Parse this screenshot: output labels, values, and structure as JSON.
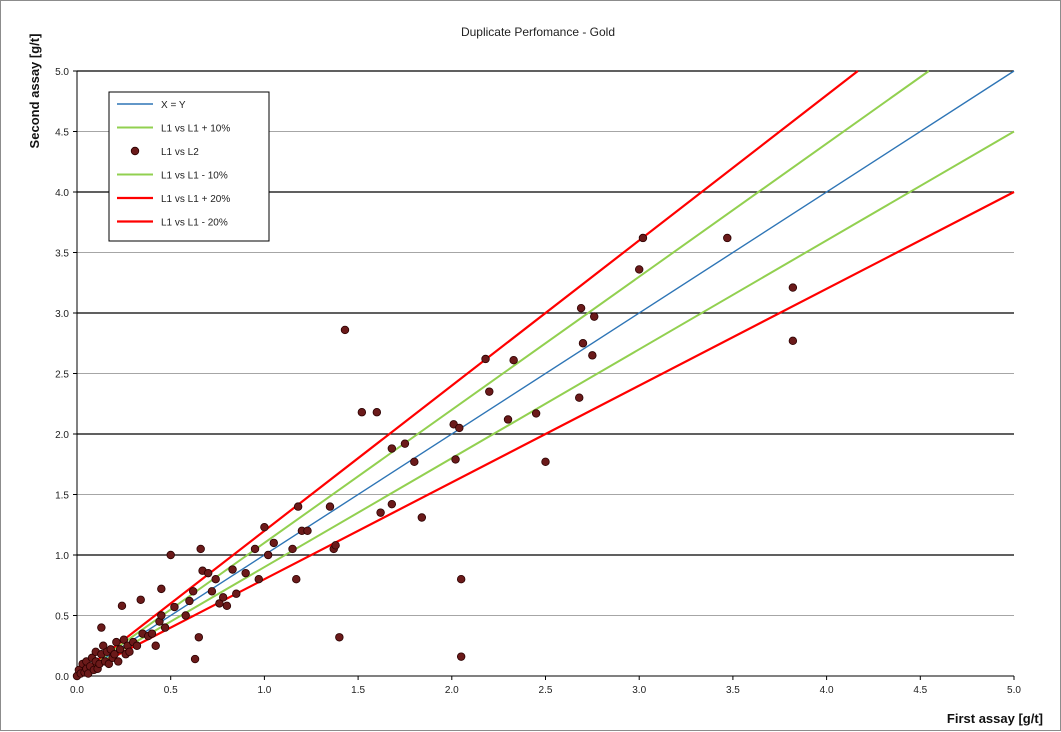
{
  "chart_data": {
    "type": "scatter",
    "title": "Duplicate Perfomance - Gold",
    "xlabel": "First assay [g/t]",
    "ylabel": "Second assay [g/t]",
    "xlim": [
      0,
      5
    ],
    "ylim": [
      0,
      5
    ],
    "x_ticks": [
      "0.0",
      "0.5",
      "1.0",
      "1.5",
      "2.0",
      "2.5",
      "3.0",
      "3.5",
      "4.0",
      "4.5",
      "5.0"
    ],
    "y_ticks": [
      "0.0",
      "0.5",
      "1.0",
      "1.5",
      "2.0",
      "2.5",
      "3.0",
      "3.5",
      "4.0",
      "4.5",
      "5.0"
    ],
    "major_gridlines": [
      1.0,
      2.0,
      3.0,
      4.0,
      5.0
    ],
    "minor_gridlines": [
      0.5,
      1.5,
      2.5,
      3.5,
      4.5
    ],
    "legend_position": "top-left",
    "series": [
      {
        "name": "X = Y",
        "kind": "line",
        "slope": 1.0,
        "color": "#2e75b6"
      },
      {
        "name": "L1 vs L1 + 10%",
        "kind": "line",
        "slope": 1.1,
        "color": "#92d050"
      },
      {
        "name": "L1 vs L2",
        "kind": "scatter",
        "color": "#6b1a1a",
        "points": [
          [
            0.0,
            0.0
          ],
          [
            0.01,
            0.05
          ],
          [
            0.02,
            0.02
          ],
          [
            0.03,
            0.1
          ],
          [
            0.04,
            0.03
          ],
          [
            0.05,
            0.06
          ],
          [
            0.05,
            0.12
          ],
          [
            0.06,
            0.02
          ],
          [
            0.07,
            0.08
          ],
          [
            0.08,
            0.15
          ],
          [
            0.09,
            0.05
          ],
          [
            0.1,
            0.12
          ],
          [
            0.1,
            0.2
          ],
          [
            0.11,
            0.06
          ],
          [
            0.12,
            0.1
          ],
          [
            0.13,
            0.18
          ],
          [
            0.14,
            0.25
          ],
          [
            0.15,
            0.12
          ],
          [
            0.16,
            0.2
          ],
          [
            0.17,
            0.1
          ],
          [
            0.18,
            0.22
          ],
          [
            0.19,
            0.15
          ],
          [
            0.2,
            0.18
          ],
          [
            0.21,
            0.28
          ],
          [
            0.22,
            0.12
          ],
          [
            0.23,
            0.22
          ],
          [
            0.25,
            0.3
          ],
          [
            0.26,
            0.18
          ],
          [
            0.27,
            0.25
          ],
          [
            0.28,
            0.2
          ],
          [
            0.3,
            0.28
          ],
          [
            0.32,
            0.25
          ],
          [
            0.35,
            0.35
          ],
          [
            0.38,
            0.33
          ],
          [
            0.4,
            0.35
          ],
          [
            0.42,
            0.25
          ],
          [
            0.44,
            0.45
          ],
          [
            0.45,
            0.5
          ],
          [
            0.47,
            0.4
          ],
          [
            0.13,
            0.4
          ],
          [
            0.24,
            0.58
          ],
          [
            0.34,
            0.63
          ],
          [
            0.45,
            0.72
          ],
          [
            0.5,
            1.0
          ],
          [
            0.52,
            0.57
          ],
          [
            0.58,
            0.5
          ],
          [
            0.6,
            0.62
          ],
          [
            0.62,
            0.7
          ],
          [
            0.63,
            0.14
          ],
          [
            0.65,
            0.32
          ],
          [
            0.66,
            1.05
          ],
          [
            0.67,
            0.87
          ],
          [
            0.7,
            0.85
          ],
          [
            0.72,
            0.7
          ],
          [
            0.74,
            0.8
          ],
          [
            0.76,
            0.6
          ],
          [
            0.78,
            0.65
          ],
          [
            0.8,
            0.58
          ],
          [
            0.83,
            0.88
          ],
          [
            0.85,
            0.68
          ],
          [
            0.9,
            0.85
          ],
          [
            0.95,
            1.05
          ],
          [
            0.97,
            0.8
          ],
          [
            1.0,
            1.23
          ],
          [
            1.02,
            1.0
          ],
          [
            1.05,
            1.1
          ],
          [
            1.15,
            1.05
          ],
          [
            1.17,
            0.8
          ],
          [
            1.18,
            1.4
          ],
          [
            1.2,
            1.2
          ],
          [
            1.23,
            1.2
          ],
          [
            1.35,
            1.4
          ],
          [
            1.37,
            1.05
          ],
          [
            1.38,
            1.08
          ],
          [
            1.4,
            0.32
          ],
          [
            1.43,
            2.86
          ],
          [
            1.52,
            2.18
          ],
          [
            1.6,
            2.18
          ],
          [
            1.62,
            1.35
          ],
          [
            1.68,
            1.88
          ],
          [
            1.68,
            1.42
          ],
          [
            1.75,
            1.92
          ],
          [
            1.8,
            1.77
          ],
          [
            1.84,
            1.31
          ],
          [
            2.01,
            2.08
          ],
          [
            2.02,
            1.79
          ],
          [
            2.04,
            2.05
          ],
          [
            2.05,
            0.8
          ],
          [
            2.05,
            0.16
          ],
          [
            2.18,
            2.62
          ],
          [
            2.2,
            2.35
          ],
          [
            2.3,
            2.12
          ],
          [
            2.33,
            2.61
          ],
          [
            2.45,
            2.17
          ],
          [
            2.5,
            1.77
          ],
          [
            2.68,
            2.3
          ],
          [
            2.69,
            3.04
          ],
          [
            2.7,
            2.75
          ],
          [
            2.75,
            2.65
          ],
          [
            2.76,
            2.97
          ],
          [
            3.0,
            3.36
          ],
          [
            3.02,
            3.62
          ],
          [
            3.47,
            3.62
          ],
          [
            3.82,
            3.21
          ],
          [
            3.82,
            2.77
          ]
        ]
      },
      {
        "name": "L1 vs L1 - 10%",
        "kind": "line",
        "slope": 0.9,
        "color": "#92d050"
      },
      {
        "name": "L1 vs L1 + 20%",
        "kind": "line",
        "slope": 1.2,
        "color": "#ff0000"
      },
      {
        "name": "L1 vs L1 - 20%",
        "kind": "line",
        "slope": 0.8,
        "color": "#ff0000"
      }
    ]
  }
}
